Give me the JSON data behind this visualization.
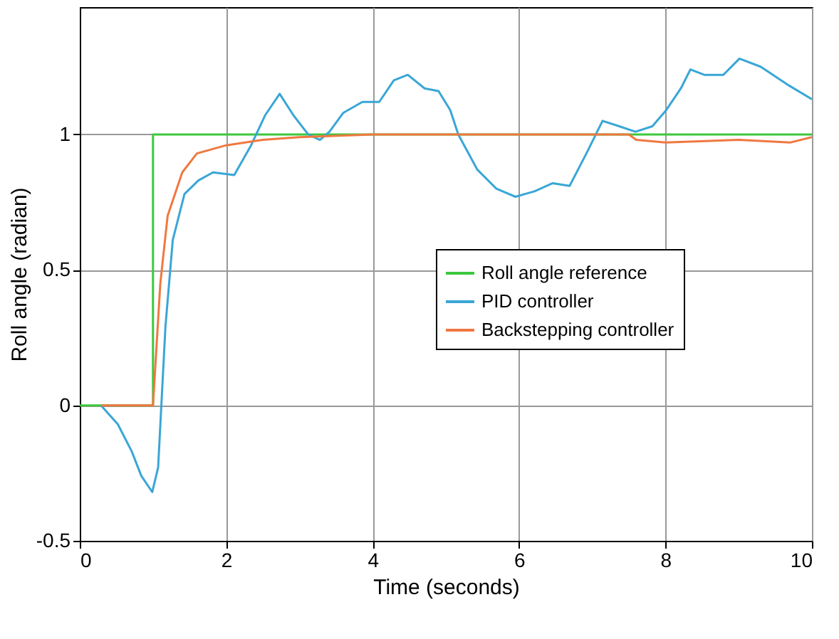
{
  "chart_data": {
    "type": "line",
    "xlabel": "Time (seconds)",
    "ylabel": "Roll angle (radian)",
    "xlim": [
      0,
      10
    ],
    "xticks": [
      0,
      2,
      4,
      6,
      8,
      10
    ],
    "ylim": [
      -0.5,
      1.47
    ],
    "yticks": [
      -0.5,
      0,
      0.5,
      1
    ],
    "grid": true,
    "legend": "right",
    "line_style": "solid",
    "marker": "none",
    "series": [
      {
        "name": "Roll angle reference",
        "color": "#3cc83c",
        "type": "step",
        "x": [
          0,
          1,
          10
        ],
        "values": [
          0,
          1,
          1
        ]
      },
      {
        "name": "PID controller",
        "color": "#3aa6d6",
        "x": [
          0.29,
          0.52,
          0.71,
          0.84,
          0.99,
          1.07,
          1.17,
          1.27,
          1.43,
          1.62,
          1.82,
          2.11,
          2.34,
          2.53,
          2.73,
          2.92,
          3.12,
          3.28,
          3.41,
          3.6,
          3.86,
          4.09,
          4.29,
          4.48,
          4.71,
          4.9,
          5.06,
          5.17,
          5.43,
          5.69,
          5.95,
          6.21,
          6.46,
          6.69,
          6.92,
          7.14,
          7.37,
          7.59,
          7.82,
          8.01,
          8.21,
          8.34,
          8.53,
          8.79,
          9.01,
          9.3,
          9.69,
          10
        ],
        "values": [
          0,
          -0.07,
          -0.17,
          -0.26,
          -0.32,
          -0.23,
          0.29,
          0.61,
          0.78,
          0.83,
          0.86,
          0.85,
          0.96,
          1.07,
          1.15,
          1.07,
          1.0,
          0.98,
          1.01,
          1.08,
          1.12,
          1.12,
          1.2,
          1.22,
          1.17,
          1.16,
          1.09,
          1.0,
          0.87,
          0.8,
          0.77,
          0.79,
          0.82,
          0.81,
          0.93,
          1.05,
          1.03,
          1.01,
          1.03,
          1.09,
          1.17,
          1.24,
          1.22,
          1.22,
          1.28,
          1.25,
          1.18,
          1.13
        ]
      },
      {
        "name": "Backstepping controller",
        "color": "#f07840",
        "x": [
          0.29,
          1.0,
          1.1,
          1.2,
          1.4,
          1.6,
          2.0,
          2.5,
          3.0,
          4.0,
          7.5,
          7.6,
          8.0,
          9.0,
          9.7,
          10
        ],
        "values": [
          0,
          0,
          0.45,
          0.7,
          0.86,
          0.93,
          0.96,
          0.98,
          0.99,
          1.0,
          1.0,
          0.98,
          0.97,
          0.98,
          0.97,
          0.99
        ]
      }
    ]
  }
}
